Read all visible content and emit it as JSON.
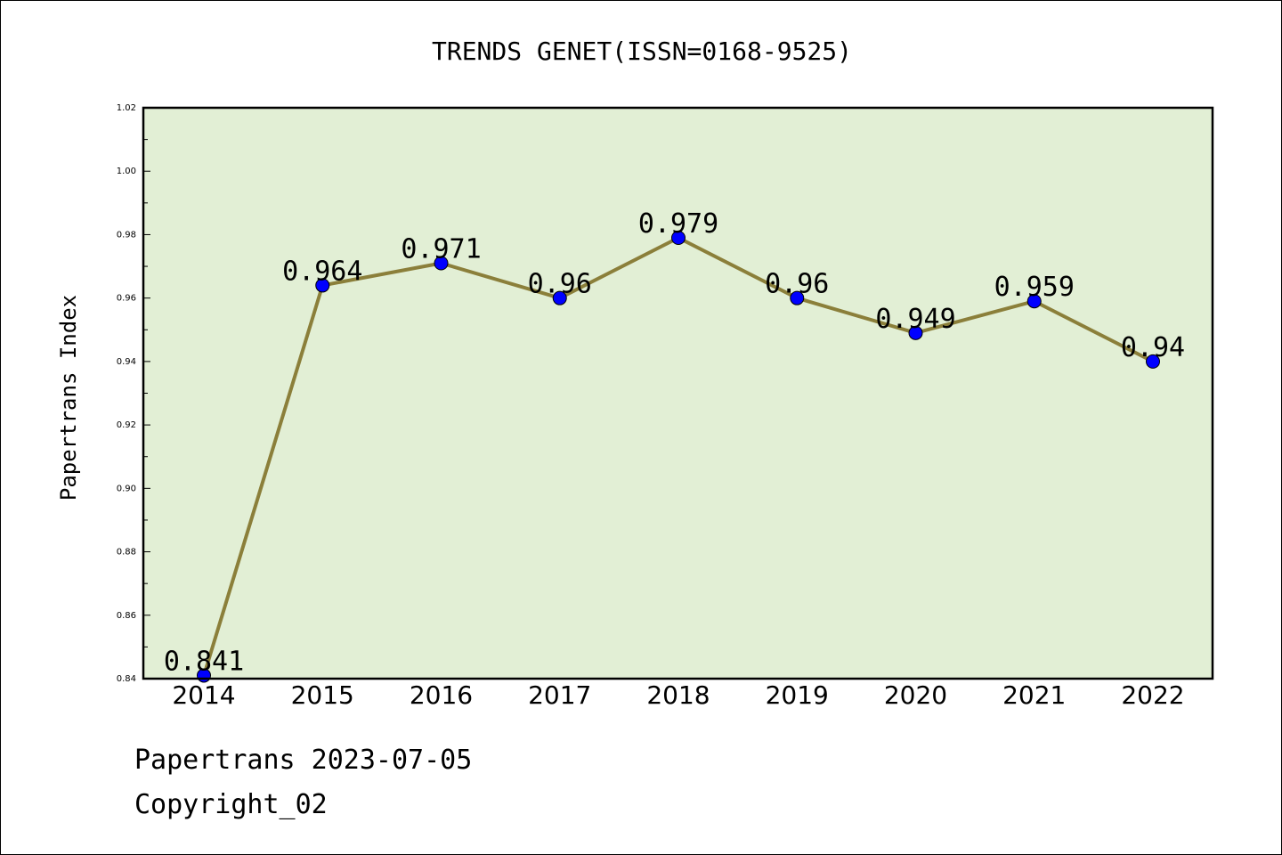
{
  "chart_data": {
    "type": "line",
    "title": "TRENDS GENET(ISSN=0168-9525)",
    "xlabel": "",
    "ylabel": "Papertrans Index",
    "categories": [
      "2014",
      "2015",
      "2016",
      "2017",
      "2018",
      "2019",
      "2020",
      "2021",
      "2022"
    ],
    "series": [
      {
        "values": [
          0.841,
          0.964,
          0.971,
          0.96,
          0.979,
          0.96,
          0.949,
          0.959,
          0.94
        ],
        "labels": [
          "0.841",
          "0.964",
          "0.971",
          "0.96",
          "0.979",
          "0.96",
          "0.949",
          "0.959",
          "0.94"
        ]
      }
    ],
    "ylim": [
      0.84,
      1.02
    ],
    "yticks": [
      "0.84",
      "0.86",
      "0.88",
      "0.90",
      "0.92",
      "0.94",
      "0.96",
      "0.98",
      "1.00",
      "1.02"
    ],
    "grid": false,
    "colors": {
      "plot_background": "#e2efd5",
      "line": "#8b7f3a",
      "marker": "#0000ff"
    }
  },
  "footer": {
    "line1": "Papertrans 2023-07-05",
    "line2": "Copyright_02"
  }
}
